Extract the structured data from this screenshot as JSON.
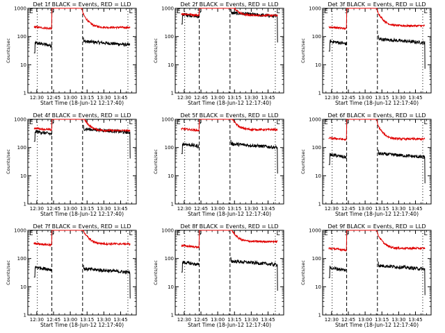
{
  "chart_data": {
    "type": "line",
    "layout": "3x3 grid of log-scale time series",
    "y_scale": "log",
    "ylim": [
      1,
      1000
    ],
    "yticks": [
      1,
      10,
      100,
      1000
    ],
    "ytick_labels": [
      "1",
      "10",
      "100",
      "1000"
    ],
    "ylabel": "Counts/sec",
    "xlabel": "Start Time (18-Jun-12 12:17:40)",
    "xlim_min": [
      742,
      839
    ],
    "xticks_min": [
      750,
      765,
      780,
      795,
      810,
      825
    ],
    "xtick_labels": [
      "12:30",
      "12:45",
      "13:00",
      "13:15",
      "13:30",
      "13:45"
    ],
    "series_names": [
      "Events",
      "LLD"
    ],
    "series_colors": {
      "Events": "#000000",
      "LLD": "#e00000"
    },
    "markers": {
      "E": 745.0,
      "S": 763.5,
      "L": 834.0
    },
    "dashed_lines_min": [
      763.5,
      791.0
    ],
    "dotted_lines_min": [
      750.5,
      831.5
    ],
    "panels": [
      {
        "title": "Det 1f BLACK = Events, RED = LLD",
        "events": {
          "pre": 48,
          "post": 50
        },
        "lld": {
          "pre": 190,
          "post": 210
        },
        "lld_saturates": false,
        "drop": false
      },
      {
        "title": "Det 2f BLACK = Events, RED = LLD",
        "events": {
          "pre": 500,
          "post": 510
        },
        "lld": {
          "pre": 560,
          "post": 560
        },
        "lld_saturates": true,
        "drop": true
      },
      {
        "title": "Det 3f BLACK = Events, RED = LLD",
        "events": {
          "pre": 55,
          "post": 60
        },
        "lld": {
          "pre": 190,
          "post": 240
        },
        "lld_saturates": false,
        "drop": true
      },
      {
        "title": "Det 4f BLACK = Events, RED = LLD",
        "events": {
          "pre": 300,
          "post": 340
        },
        "lld": {
          "pre": 420,
          "post": 400
        },
        "lld_saturates": true,
        "drop": true
      },
      {
        "title": "Det 5f BLACK = Events, RED = LLD",
        "events": {
          "pre": 110,
          "post": 100
        },
        "lld": {
          "pre": 400,
          "post": 430
        },
        "lld_saturates": false,
        "drop": true
      },
      {
        "title": "Det 6f BLACK = Events, RED = LLD",
        "events": {
          "pre": 45,
          "post": 45
        },
        "lld": {
          "pre": 190,
          "post": 200
        },
        "lld_saturates": false,
        "drop": true
      },
      {
        "title": "Det 7f BLACK = Events, RED = LLD",
        "events": {
          "pre": 40,
          "post": 32
        },
        "lld": {
          "pre": 300,
          "post": 330
        },
        "lld_saturates": false,
        "drop": true
      },
      {
        "title": "Det 8f BLACK = Events, RED = LLD",
        "events": {
          "pre": 60,
          "post": 60
        },
        "lld": {
          "pre": 250,
          "post": 400
        },
        "lld_saturates": false,
        "drop": true
      },
      {
        "title": "Det 9f BLACK = Events, RED = LLD",
        "events": {
          "pre": 38,
          "post": 42
        },
        "lld": {
          "pre": 200,
          "post": 230
        },
        "lld_saturates": false,
        "drop": true
      }
    ]
  }
}
